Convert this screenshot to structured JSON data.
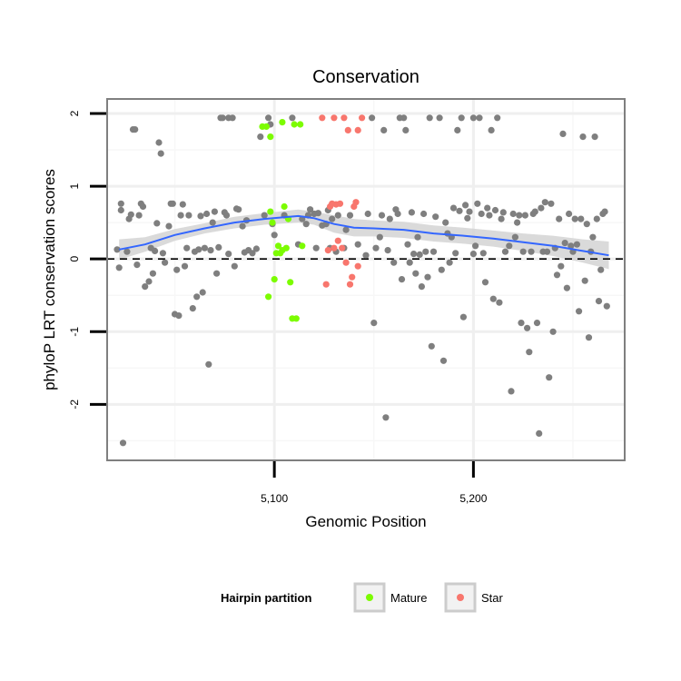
{
  "chart_data": {
    "type": "scatter",
    "title": "Conservation",
    "xlabel": "Genomic Position",
    "ylabel": "phyloP LRT conservation scores",
    "xlim": [
      5016,
      5276
    ],
    "ylim": [
      -2.77,
      2.2
    ],
    "x_ticks": [
      {
        "value": 5100,
        "label": "5,100"
      },
      {
        "value": 5200,
        "label": "5,200"
      }
    ],
    "y_ticks": [
      {
        "value": 2,
        "label": "2"
      },
      {
        "value": 1,
        "label": "1"
      },
      {
        "value": 0,
        "label": "0"
      },
      {
        "value": -1,
        "label": "-1"
      },
      {
        "value": -2,
        "label": "-2"
      }
    ],
    "grid": true,
    "reference_line": {
      "y": 0,
      "style": "dashed"
    },
    "legend": {
      "title": "Hairpin partition",
      "position": "bottom",
      "entries": [
        {
          "label": "Mature",
          "color": "#7CFC00"
        },
        {
          "label": "Star",
          "color": "#F8766D"
        }
      ]
    },
    "colors": {
      "background": "#7f7f7f",
      "mature": "#7CFC00",
      "star": "#F8766D",
      "smooth": "#3366FF",
      "ribbon": "#d4d4d4"
    },
    "series": [
      {
        "name": "Background",
        "color": "#7f7f7f",
        "points": [
          [
            5021,
            0.13
          ],
          [
            5022,
            -0.12
          ],
          [
            5023,
            0.76
          ],
          [
            5023,
            0.67
          ],
          [
            5024,
            -2.53
          ],
          [
            5026,
            0.1
          ],
          [
            5027,
            0.55
          ],
          [
            5028,
            0.61
          ],
          [
            5029,
            1.78
          ],
          [
            5030,
            1.78
          ],
          [
            5031,
            -0.08
          ],
          [
            5032,
            0.6
          ],
          [
            5033,
            0.76
          ],
          [
            5034,
            0.72
          ],
          [
            5035,
            -0.38
          ],
          [
            5037,
            -0.31
          ],
          [
            5038,
            0.15
          ],
          [
            5039,
            -0.2
          ],
          [
            5040,
            0.11
          ],
          [
            5041,
            0.49
          ],
          [
            5042,
            1.6
          ],
          [
            5043,
            1.45
          ],
          [
            5044,
            0.08
          ],
          [
            5045,
            -0.05
          ],
          [
            5047,
            0.45
          ],
          [
            5048,
            0.76
          ],
          [
            5049,
            0.76
          ],
          [
            5050,
            -0.76
          ],
          [
            5051,
            -0.15
          ],
          [
            5052,
            -0.78
          ],
          [
            5053,
            0.6
          ],
          [
            5054,
            0.75
          ],
          [
            5055,
            -0.1
          ],
          [
            5056,
            0.15
          ],
          [
            5057,
            0.6
          ],
          [
            5059,
            -0.68
          ],
          [
            5060,
            0.1
          ],
          [
            5061,
            -0.52
          ],
          [
            5062,
            0.13
          ],
          [
            5063,
            0.59
          ],
          [
            5064,
            -0.46
          ],
          [
            5065,
            0.15
          ],
          [
            5066,
            0.62
          ],
          [
            5067,
            -1.45
          ],
          [
            5068,
            0.12
          ],
          [
            5069,
            0.5
          ],
          [
            5070,
            0.65
          ],
          [
            5071,
            -0.2
          ],
          [
            5072,
            0.16
          ],
          [
            5073,
            1.94
          ],
          [
            5074,
            1.94
          ],
          [
            5075,
            0.64
          ],
          [
            5076,
            0.6
          ],
          [
            5077,
            0.07
          ],
          [
            5077,
            1.94
          ],
          [
            5079,
            1.94
          ],
          [
            5080,
            -0.1
          ],
          [
            5081,
            0.69
          ],
          [
            5082,
            0.68
          ],
          [
            5084,
            0.45
          ],
          [
            5085,
            0.09
          ],
          [
            5086,
            0.53
          ],
          [
            5087,
            0.12
          ],
          [
            5089,
            0.08
          ],
          [
            5091,
            0.14
          ],
          [
            5093,
            1.68
          ],
          [
            5095,
            0.6
          ],
          [
            5097,
            1.94
          ],
          [
            5098,
            1.85
          ],
          [
            5099,
            0.48
          ],
          [
            5100,
            0.33
          ],
          [
            5105,
            0.6
          ],
          [
            5109,
            1.94
          ],
          [
            5112,
            0.2
          ],
          [
            5114,
            0.55
          ],
          [
            5116,
            0.48
          ],
          [
            5117,
            0.6
          ],
          [
            5118,
            0.68
          ],
          [
            5120,
            0.62
          ],
          [
            5121,
            0.15
          ],
          [
            5122,
            0.63
          ],
          [
            5124,
            0.46
          ],
          [
            5126,
            0.48
          ],
          [
            5127,
            0.67
          ],
          [
            5128,
            0.15
          ],
          [
            5129,
            0.55
          ],
          [
            5131,
            0.1
          ],
          [
            5132,
            0.6
          ],
          [
            5135,
            0.15
          ],
          [
            5136,
            0.4
          ],
          [
            5138,
            0.6
          ],
          [
            5142,
            0.2
          ],
          [
            5146,
            0.05
          ],
          [
            5147,
            0.62
          ],
          [
            5149,
            1.94
          ],
          [
            5150,
            -0.88
          ],
          [
            5151,
            0.15
          ],
          [
            5153,
            0.3
          ],
          [
            5154,
            0.6
          ],
          [
            5155,
            1.77
          ],
          [
            5156,
            -2.18
          ],
          [
            5157,
            0.12
          ],
          [
            5158,
            0.55
          ],
          [
            5160,
            -0.05
          ],
          [
            5161,
            0.68
          ],
          [
            5162,
            0.62
          ],
          [
            5163,
            1.94
          ],
          [
            5164,
            -0.28
          ],
          [
            5165,
            1.94
          ],
          [
            5166,
            1.77
          ],
          [
            5167,
            0.2
          ],
          [
            5168,
            -0.05
          ],
          [
            5169,
            0.64
          ],
          [
            5170,
            0.07
          ],
          [
            5171,
            -0.2
          ],
          [
            5172,
            0.3
          ],
          [
            5173,
            0.06
          ],
          [
            5174,
            -0.38
          ],
          [
            5175,
            0.62
          ],
          [
            5176,
            0.1
          ],
          [
            5177,
            -0.25
          ],
          [
            5178,
            1.94
          ],
          [
            5179,
            -1.2
          ],
          [
            5180,
            0.1
          ],
          [
            5181,
            0.58
          ],
          [
            5183,
            1.94
          ],
          [
            5184,
            -0.15
          ],
          [
            5185,
            -1.4
          ],
          [
            5186,
            0.5
          ],
          [
            5187,
            0.35
          ],
          [
            5188,
            -0.05
          ],
          [
            5189,
            0.3
          ],
          [
            5190,
            0.7
          ],
          [
            5191,
            0.08
          ],
          [
            5192,
            1.77
          ],
          [
            5193,
            0.66
          ],
          [
            5194,
            1.94
          ],
          [
            5195,
            -0.8
          ],
          [
            5196,
            0.74
          ],
          [
            5197,
            0.56
          ],
          [
            5198,
            0.65
          ],
          [
            5200,
            1.94
          ],
          [
            5200,
            0.07
          ],
          [
            5201,
            0.18
          ],
          [
            5202,
            0.76
          ],
          [
            5203,
            1.94
          ],
          [
            5204,
            0.62
          ],
          [
            5205,
            0.08
          ],
          [
            5206,
            -0.32
          ],
          [
            5207,
            0.7
          ],
          [
            5208,
            0.6
          ],
          [
            5209,
            1.77
          ],
          [
            5210,
            -0.55
          ],
          [
            5211,
            0.67
          ],
          [
            5212,
            1.94
          ],
          [
            5213,
            -0.6
          ],
          [
            5214,
            0.55
          ],
          [
            5215,
            0.64
          ],
          [
            5216,
            0.1
          ],
          [
            5218,
            0.18
          ],
          [
            5219,
            -1.82
          ],
          [
            5220,
            0.62
          ],
          [
            5221,
            0.3
          ],
          [
            5222,
            0.5
          ],
          [
            5223,
            0.6
          ],
          [
            5224,
            -0.88
          ],
          [
            5225,
            0.1
          ],
          [
            5226,
            0.6
          ],
          [
            5227,
            -0.95
          ],
          [
            5228,
            -1.28
          ],
          [
            5229,
            0.1
          ],
          [
            5230,
            0.62
          ],
          [
            5231,
            0.65
          ],
          [
            5232,
            -0.88
          ],
          [
            5233,
            -2.4
          ],
          [
            5234,
            0.7
          ],
          [
            5235,
            0.1
          ],
          [
            5236,
            0.78
          ],
          [
            5237,
            0.1
          ],
          [
            5238,
            -1.63
          ],
          [
            5239,
            0.76
          ],
          [
            5240,
            -1.0
          ],
          [
            5241,
            0.15
          ],
          [
            5242,
            -0.22
          ],
          [
            5243,
            0.55
          ],
          [
            5244,
            -0.1
          ],
          [
            5245,
            1.72
          ],
          [
            5246,
            0.22
          ],
          [
            5247,
            -0.4
          ],
          [
            5248,
            0.62
          ],
          [
            5249,
            0.18
          ],
          [
            5250,
            0.1
          ],
          [
            5251,
            0.55
          ],
          [
            5252,
            0.2
          ],
          [
            5253,
            -0.72
          ],
          [
            5254,
            0.55
          ],
          [
            5255,
            1.68
          ],
          [
            5256,
            -0.3
          ],
          [
            5257,
            0.48
          ],
          [
            5258,
            -1.08
          ],
          [
            5259,
            0.1
          ],
          [
            5260,
            0.3
          ],
          [
            5261,
            1.68
          ],
          [
            5262,
            0.55
          ],
          [
            5263,
            -0.58
          ],
          [
            5264,
            -0.15
          ],
          [
            5265,
            0.62
          ],
          [
            5266,
            0.65
          ],
          [
            5267,
            -0.65
          ]
        ]
      },
      {
        "name": "Mature",
        "color": "#7CFC00",
        "points": [
          [
            5094,
            1.82
          ],
          [
            5096,
            1.82
          ],
          [
            5097,
            -0.52
          ],
          [
            5098,
            0.65
          ],
          [
            5098,
            1.68
          ],
          [
            5099,
            0.5
          ],
          [
            5100,
            -0.28
          ],
          [
            5101,
            0.08
          ],
          [
            5102,
            0.18
          ],
          [
            5103,
            0.08
          ],
          [
            5104,
            0.12
          ],
          [
            5104,
            1.88
          ],
          [
            5105,
            0.72
          ],
          [
            5106,
            0.15
          ],
          [
            5107,
            0.55
          ],
          [
            5108,
            -0.32
          ],
          [
            5109,
            -0.82
          ],
          [
            5110,
            1.85
          ],
          [
            5111,
            -0.82
          ],
          [
            5113,
            1.85
          ],
          [
            5114,
            0.18
          ]
        ]
      },
      {
        "name": "Star",
        "color": "#F8766D",
        "points": [
          [
            5124,
            1.94
          ],
          [
            5126,
            -0.35
          ],
          [
            5127,
            0.12
          ],
          [
            5128,
            0.72
          ],
          [
            5129,
            0.76
          ],
          [
            5130,
            1.94
          ],
          [
            5130,
            0.15
          ],
          [
            5131,
            0.75
          ],
          [
            5132,
            0.25
          ],
          [
            5133,
            0.76
          ],
          [
            5134,
            0.15
          ],
          [
            5135,
            1.94
          ],
          [
            5136,
            -0.05
          ],
          [
            5137,
            1.77
          ],
          [
            5138,
            -0.35
          ],
          [
            5139,
            -0.25
          ],
          [
            5140,
            0.72
          ],
          [
            5141,
            0.78
          ],
          [
            5142,
            1.77
          ],
          [
            5142,
            -0.1
          ],
          [
            5144,
            1.94
          ]
        ]
      },
      {
        "name": "Smooth",
        "color": "#3366FF",
        "type": "line",
        "points": [
          [
            5022,
            0.13
          ],
          [
            5035,
            0.2
          ],
          [
            5050,
            0.33
          ],
          [
            5065,
            0.42
          ],
          [
            5080,
            0.5
          ],
          [
            5095,
            0.55
          ],
          [
            5112,
            0.59
          ],
          [
            5120,
            0.56
          ],
          [
            5130,
            0.48
          ],
          [
            5140,
            0.43
          ],
          [
            5150,
            0.42
          ],
          [
            5165,
            0.4
          ],
          [
            5180,
            0.35
          ],
          [
            5195,
            0.32
          ],
          [
            5210,
            0.28
          ],
          [
            5225,
            0.23
          ],
          [
            5240,
            0.18
          ],
          [
            5255,
            0.11
          ],
          [
            5268,
            0.05
          ]
        ],
        "band": [
          [
            0.27,
            -0.01
          ],
          [
            0.3,
            0.1
          ],
          [
            0.41,
            0.25
          ],
          [
            0.49,
            0.35
          ],
          [
            0.58,
            0.42
          ],
          [
            0.63,
            0.47
          ],
          [
            0.68,
            0.5
          ],
          [
            0.65,
            0.47
          ],
          [
            0.6,
            0.36
          ],
          [
            0.55,
            0.31
          ],
          [
            0.53,
            0.31
          ],
          [
            0.51,
            0.29
          ],
          [
            0.46,
            0.24
          ],
          [
            0.43,
            0.21
          ],
          [
            0.39,
            0.17
          ],
          [
            0.35,
            0.11
          ],
          [
            0.32,
            0.04
          ],
          [
            0.27,
            -0.05
          ],
          [
            0.24,
            -0.14
          ]
        ]
      }
    ]
  }
}
